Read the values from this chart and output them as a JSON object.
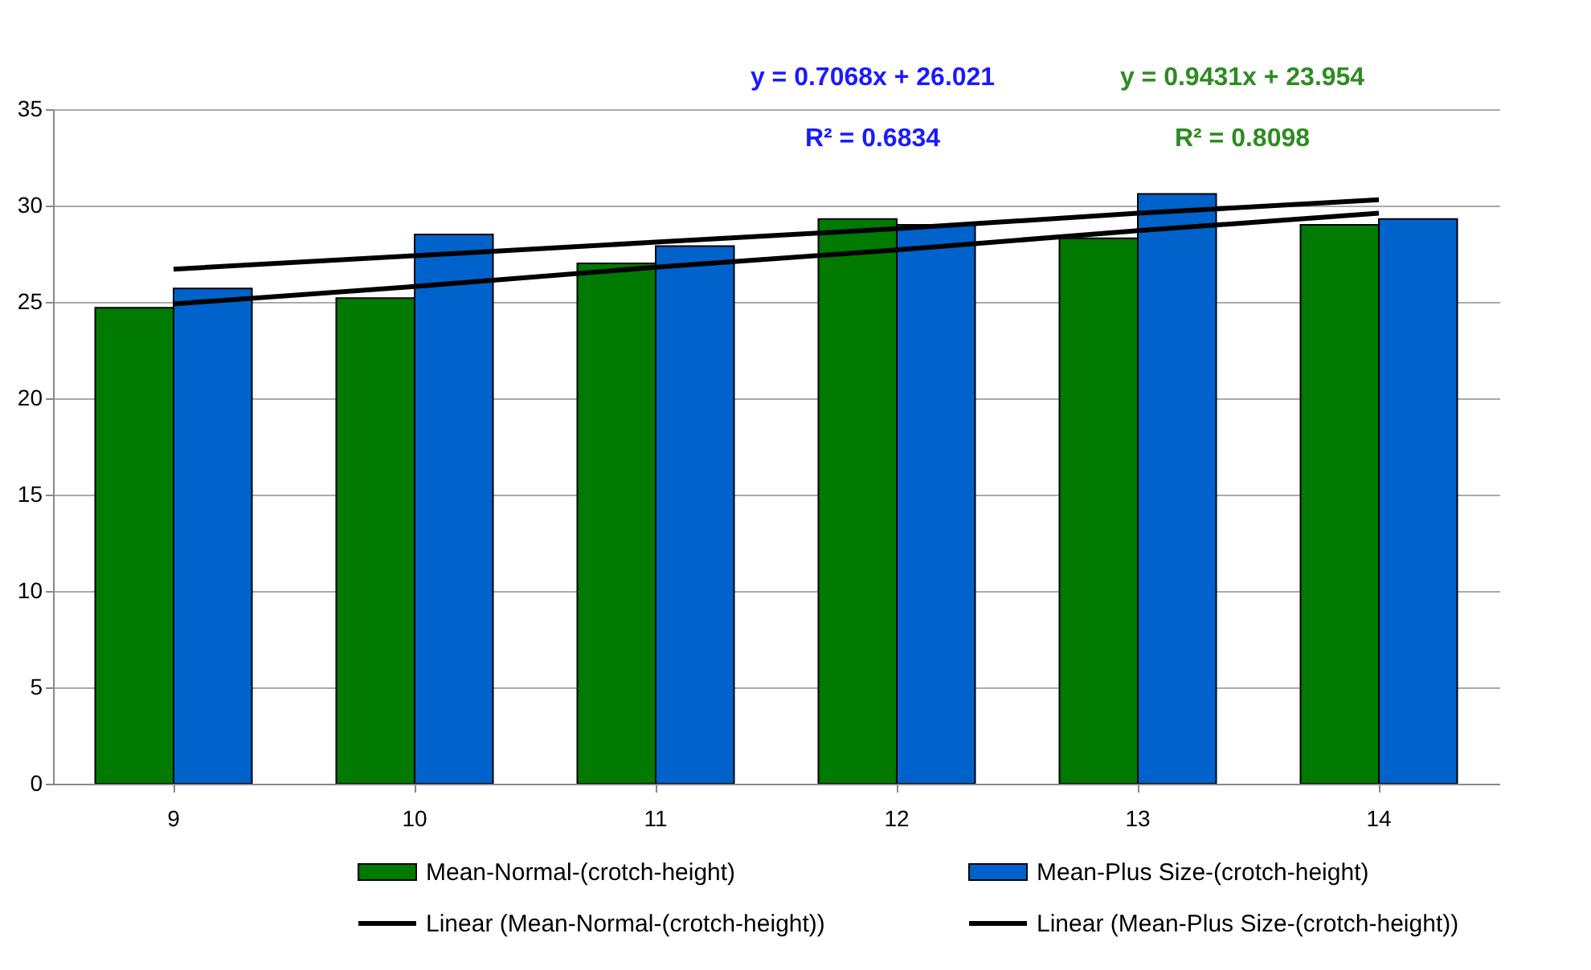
{
  "chart_data": {
    "type": "bar",
    "categories": [
      "9",
      "10",
      "11",
      "12",
      "13",
      "14"
    ],
    "series": [
      {
        "name": "Mean-Normal-(crotch-height)",
        "color": "#007a00",
        "values": [
          24.7,
          25.2,
          27.0,
          29.3,
          28.3,
          29.0
        ]
      },
      {
        "name": "Mean-Plus Size-(crotch-height)",
        "color": "#0063cc",
        "values": [
          25.7,
          28.5,
          27.9,
          29.0,
          30.6,
          29.3
        ]
      },
      {
        "name": "Linear (Mean-Normal-(crotch-height))",
        "color": "#000000",
        "type": "line",
        "values": [
          24.9,
          25.8,
          26.8,
          27.7,
          28.7,
          29.6
        ]
      },
      {
        "name": "Linear (Mean-Plus Size-(crotch-height))",
        "color": "#000000",
        "type": "line",
        "values": [
          26.7,
          27.4,
          28.1,
          28.8,
          29.6,
          30.3
        ]
      }
    ],
    "ylim": [
      0,
      35
    ],
    "yticks": [
      0,
      5,
      10,
      15,
      20,
      25,
      30,
      35
    ],
    "grid": "y",
    "legend": "bottom",
    "annotations": [
      "y = 0.7068x + 26.021",
      "R² = 0.6834",
      "y = 0.9431x + 23.954",
      "R² = 0.8098"
    ]
  }
}
